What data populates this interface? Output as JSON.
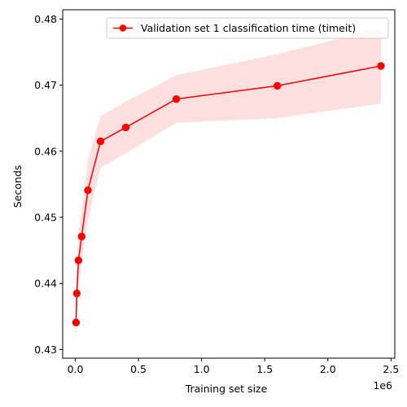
{
  "chart_data": {
    "type": "line",
    "xlabel": "Training set size",
    "ylabel": "Seconds",
    "x_offset_label": "1e6",
    "xlim": [
      -0.1,
      2.53
    ],
    "ylim": [
      0.4287,
      0.4814
    ],
    "x_ticks": [
      0.0,
      0.5,
      1.0,
      1.5,
      2.0,
      2.5
    ],
    "x_tick_labels": [
      "0.0",
      "0.5",
      "1.0",
      "1.5",
      "2.0",
      "2.5"
    ],
    "y_ticks": [
      0.43,
      0.44,
      0.45,
      0.46,
      0.47,
      0.48
    ],
    "y_tick_labels": [
      "0.43",
      "0.44",
      "0.45",
      "0.46",
      "0.47",
      "0.48"
    ],
    "legend_position": "top-right",
    "grid": false,
    "series": [
      {
        "name": "Validation set 1 classification time (timeit)",
        "color": "#ff0000",
        "band_color": "#ffe0e0",
        "x": [
          0.006,
          0.012,
          0.025,
          0.05,
          0.1,
          0.2,
          0.4,
          0.8,
          1.6,
          2.42
        ],
        "y": [
          0.4341,
          0.4385,
          0.4435,
          0.4471,
          0.4541,
          0.4615,
          0.4636,
          0.4679,
          0.4699,
          0.4729
        ],
        "y_lower": [
          0.4308,
          0.4345,
          0.4395,
          0.4432,
          0.4495,
          0.4575,
          0.4597,
          0.4643,
          0.465,
          0.4672
        ],
        "y_upper": [
          0.4373,
          0.4425,
          0.4475,
          0.451,
          0.4587,
          0.4653,
          0.4675,
          0.4715,
          0.4747,
          0.4786
        ]
      }
    ]
  }
}
